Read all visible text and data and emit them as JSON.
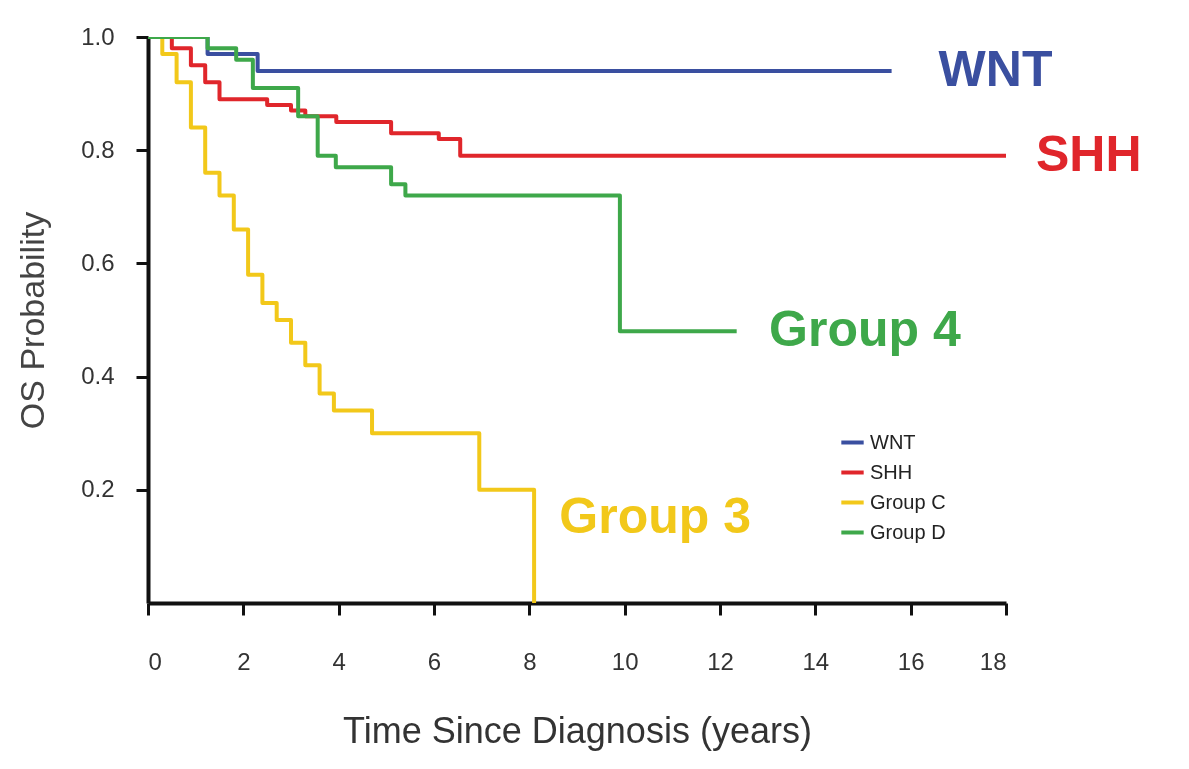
{
  "chart_data": {
    "type": "step",
    "xlabel": "Time Since Diagnosis (years)",
    "ylabel": "OS Probability",
    "xlim": [
      0,
      18
    ],
    "xticks": [
      0,
      2,
      4,
      6,
      8,
      10,
      12,
      14,
      16,
      18
    ],
    "ylim": [
      0,
      1
    ],
    "yticks": [
      0.2,
      0.4,
      0.6,
      {
        "value": 1,
        "label": "1.0"
      },
      0.8
    ],
    "grid": false,
    "legend": "bottom right",
    "series": [
      {
        "name": "WNT",
        "color": "#3a4fa0",
        "x": [
          0,
          1.25,
          2.3,
          15.6
        ],
        "values": [
          1,
          0.97,
          0.94,
          0.94
        ]
      },
      {
        "name": "SHH",
        "color": "#e0262b",
        "x": [
          0,
          0.5,
          0.9,
          1.2,
          1.5,
          2.5,
          3.0,
          3.3,
          3.95,
          5.1,
          6.1,
          6.55,
          18
        ],
        "values": [
          1,
          0.98,
          0.95,
          0.92,
          0.89,
          0.88,
          0.87,
          0.86,
          0.85,
          0.83,
          0.82,
          0.79,
          0.79
        ]
      },
      {
        "name": "Group C",
        "color": "#f2c81a",
        "x": [
          0,
          0.3,
          0.6,
          0.9,
          1.2,
          1.5,
          1.8,
          2.1,
          2.4,
          2.7,
          3.0,
          3.3,
          3.6,
          3.9,
          4.7,
          6.95,
          8.1
        ],
        "values": [
          1,
          0.97,
          0.92,
          0.84,
          0.76,
          0.72,
          0.66,
          0.58,
          0.53,
          0.5,
          0.46,
          0.42,
          0.37,
          0.34,
          0.3,
          0.2,
          0
        ]
      },
      {
        "name": "Group D",
        "color": "#3ea84a",
        "x": [
          0,
          1.25,
          1.85,
          2.2,
          3.15,
          3.56,
          3.94,
          5.1,
          5.4,
          9.9,
          12.35
        ],
        "values": [
          1,
          0.98,
          0.96,
          0.91,
          0.86,
          0.79,
          0.77,
          0.74,
          0.72,
          0.48,
          0.48
        ]
      }
    ],
    "annotations": [
      "WNT",
      {
        "text": "SHH",
        "x": 18,
        "y": 0.79
      },
      {
        "text": "Group 3",
        "x": 8.0,
        "y": 0.15
      },
      {
        "text": "Group 4",
        "x": 12.4,
        "y": 0.48
      }
    ]
  }
}
